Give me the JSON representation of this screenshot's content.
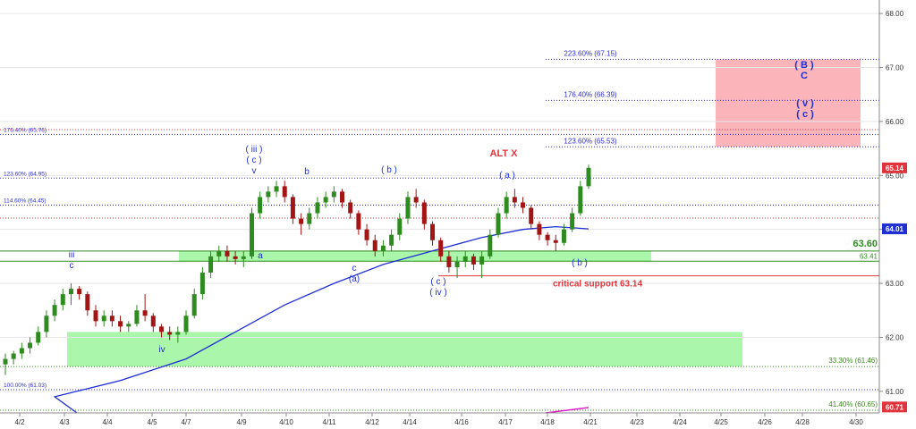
{
  "chart_data": {
    "type": "candlestick",
    "ylim": [
      60.6,
      68.25
    ],
    "y_ticks": [
      "68.00",
      "67.00",
      "66.00",
      "65.00",
      "64.00",
      "63.00",
      "62.00",
      "61.00"
    ],
    "y_tick_values": [
      68,
      67,
      66,
      65,
      64,
      63,
      62,
      61
    ],
    "x_ticks": [
      "4/2",
      "4/3",
      "4/4",
      "4/5",
      "4/7",
      "4/9",
      "4/10",
      "4/11",
      "4/12",
      "4/14",
      "4/16",
      "4/17",
      "4/18",
      "4/21",
      "4/23",
      "4/24",
      "4/25",
      "4/26",
      "4/28",
      "4/30"
    ],
    "price_tags": [
      {
        "text": "65.14",
        "value": 65.14,
        "color": "#e0343c"
      },
      {
        "text": "64.01",
        "value": 64.01,
        "color": "#1f2fd6"
      },
      {
        "text": "60.71",
        "value": 60.71,
        "color": "#e0343c"
      }
    ],
    "fib_levels": [
      {
        "label": "223.60% (67.15)",
        "value": 67.15,
        "color": "#2b2bd6",
        "side": "right"
      },
      {
        "label": "176.40% (66.39)",
        "value": 66.39,
        "color": "#2b2bd6",
        "side": "right"
      },
      {
        "label": "123.60% (65.53)",
        "value": 65.53,
        "color": "#2b2bd6",
        "side": "right"
      },
      {
        "label": "176.40% (65.76)",
        "value": 65.76,
        "color": "#2b2bd6",
        "side": "left"
      },
      {
        "label": "123.60% (64.95)",
        "value": 64.95,
        "color": "#2b2bd6",
        "side": "left"
      },
      {
        "label": "114.60% (64.45)",
        "value": 64.45,
        "color": "#2b2bd6",
        "side": "left"
      },
      {
        "label": "100.00% (61.03)",
        "value": 61.03,
        "color": "#2b2bd6",
        "side": "left"
      },
      {
        "label": "33.30% (61.46)",
        "value": 61.46,
        "color": "#3a8a1f",
        "side": "right"
      },
      {
        "label": "41.40% (60.65)",
        "value": 60.65,
        "color": "#3a8a1f",
        "side": "right"
      }
    ],
    "support_resistance": [
      {
        "label": "63.60",
        "value": 63.6,
        "color": "#2e8b1f"
      },
      {
        "label": "63.41",
        "value": 63.41,
        "color": "#2e8b1f"
      },
      {
        "label": "critical support 63.14",
        "value": 63.14,
        "color": "#e0343c"
      }
    ],
    "zones": [
      {
        "name": "target-zone",
        "y_from": 65.53,
        "y_to": 67.15,
        "color": "#f9a7ae"
      },
      {
        "name": "support-band-upper",
        "y_from": 63.41,
        "y_to": 63.6,
        "color": "#9bf59b"
      },
      {
        "name": "support-band-lower",
        "y_from": 61.46,
        "y_to": 62.1,
        "color": "#9bf59b"
      }
    ],
    "wave_labels": [
      {
        "lines": [
          "iii",
          "c"
        ],
        "color": "#1f2fd6"
      },
      {
        "lines": [
          "iv"
        ],
        "color": "#1f2fd6"
      },
      {
        "lines": [
          "( iii )",
          "( c )",
          "v"
        ],
        "color": "#1f2fd6"
      },
      {
        "lines": [
          "a"
        ],
        "color": "#1f2fd6"
      },
      {
        "lines": [
          "b"
        ],
        "color": "#1f2fd6"
      },
      {
        "lines": [
          "c",
          "(a)"
        ],
        "color": "#1f2fd6"
      },
      {
        "lines": [
          "( b )"
        ],
        "color": "#1f2fd6"
      },
      {
        "lines": [
          "( c )",
          "( iv )"
        ],
        "color": "#1f2fd6"
      },
      {
        "lines": [
          "( a )"
        ],
        "color": "#1f2fd6"
      },
      {
        "lines": [
          "ALT X"
        ],
        "color": "#e0343c"
      },
      {
        "lines": [
          "( b )"
        ],
        "color": "#1f2fd6"
      },
      {
        "lines": [
          "( B )",
          "C"
        ],
        "color": "#1f2fd6"
      },
      {
        "lines": [
          "( v )",
          "( c )"
        ],
        "color": "#1f2fd6"
      }
    ],
    "candles": [
      [
        61.5,
        61.7,
        61.3,
        61.6
      ],
      [
        61.6,
        61.75,
        61.5,
        61.7
      ],
      [
        61.7,
        61.9,
        61.6,
        61.8
      ],
      [
        61.8,
        62.0,
        61.7,
        61.9
      ],
      [
        61.9,
        62.2,
        61.85,
        62.1
      ],
      [
        62.1,
        62.5,
        62.0,
        62.4
      ],
      [
        62.4,
        62.7,
        62.3,
        62.6
      ],
      [
        62.6,
        62.9,
        62.5,
        62.8
      ],
      [
        62.8,
        63.0,
        62.6,
        62.9
      ],
      [
        62.9,
        62.95,
        62.7,
        62.8
      ],
      [
        62.8,
        62.85,
        62.4,
        62.5
      ],
      [
        62.5,
        62.6,
        62.2,
        62.3
      ],
      [
        62.3,
        62.5,
        62.2,
        62.4
      ],
      [
        62.4,
        62.5,
        62.2,
        62.3
      ],
      [
        62.3,
        62.4,
        62.1,
        62.2
      ],
      [
        62.2,
        62.3,
        62.1,
        62.25
      ],
      [
        62.25,
        62.6,
        62.2,
        62.5
      ],
      [
        62.5,
        62.8,
        62.3,
        62.4
      ],
      [
        62.4,
        62.45,
        62.1,
        62.2
      ],
      [
        62.2,
        62.25,
        62.0,
        62.1
      ],
      [
        62.1,
        62.2,
        61.95,
        62.05
      ],
      [
        62.05,
        62.2,
        61.9,
        62.1
      ],
      [
        62.1,
        62.5,
        62.05,
        62.4
      ],
      [
        62.4,
        62.9,
        62.35,
        62.8
      ],
      [
        62.8,
        63.3,
        62.7,
        63.2
      ],
      [
        63.2,
        63.6,
        63.1,
        63.5
      ],
      [
        63.5,
        63.7,
        63.4,
        63.6
      ],
      [
        63.6,
        63.7,
        63.4,
        63.5
      ],
      [
        63.5,
        63.6,
        63.35,
        63.45
      ],
      [
        63.45,
        63.6,
        63.3,
        63.5
      ],
      [
        63.5,
        64.4,
        63.45,
        64.3
      ],
      [
        64.3,
        64.7,
        64.2,
        64.6
      ],
      [
        64.6,
        64.8,
        64.5,
        64.7
      ],
      [
        64.7,
        64.9,
        64.6,
        64.8
      ],
      [
        64.8,
        64.9,
        64.5,
        64.6
      ],
      [
        64.6,
        64.65,
        64.1,
        64.2
      ],
      [
        64.2,
        64.3,
        63.9,
        64.1
      ],
      [
        64.1,
        64.4,
        64.0,
        64.3
      ],
      [
        64.3,
        64.6,
        64.2,
        64.5
      ],
      [
        64.5,
        64.7,
        64.4,
        64.6
      ],
      [
        64.6,
        64.8,
        64.5,
        64.7
      ],
      [
        64.7,
        64.75,
        64.4,
        64.5
      ],
      [
        64.5,
        64.55,
        64.2,
        64.3
      ],
      [
        64.3,
        64.35,
        63.9,
        64.0
      ],
      [
        64.0,
        64.1,
        63.7,
        63.8
      ],
      [
        63.8,
        63.9,
        63.5,
        63.6
      ],
      [
        63.6,
        63.8,
        63.5,
        63.7
      ],
      [
        63.7,
        64.0,
        63.6,
        63.9
      ],
      [
        63.9,
        64.3,
        63.8,
        64.2
      ],
      [
        64.2,
        64.7,
        64.1,
        64.6
      ],
      [
        64.6,
        64.75,
        64.4,
        64.5
      ],
      [
        64.5,
        64.55,
        64.0,
        64.1
      ],
      [
        64.1,
        64.15,
        63.7,
        63.8
      ],
      [
        63.8,
        63.85,
        63.4,
        63.5
      ],
      [
        63.5,
        63.6,
        63.2,
        63.3
      ],
      [
        63.3,
        63.5,
        63.1,
        63.4
      ],
      [
        63.4,
        63.6,
        63.3,
        63.5
      ],
      [
        63.5,
        63.55,
        63.25,
        63.35
      ],
      [
        63.35,
        63.6,
        63.1,
        63.5
      ],
      [
        63.5,
        64.0,
        63.45,
        63.9
      ],
      [
        63.9,
        64.4,
        63.85,
        64.3
      ],
      [
        64.3,
        64.7,
        64.2,
        64.6
      ],
      [
        64.6,
        64.75,
        64.4,
        64.5
      ],
      [
        64.5,
        64.6,
        64.3,
        64.4
      ],
      [
        64.4,
        64.45,
        64.0,
        64.1
      ],
      [
        64.1,
        64.15,
        63.8,
        63.9
      ],
      [
        63.9,
        63.95,
        63.7,
        63.8
      ],
      [
        63.8,
        63.9,
        63.6,
        63.75
      ],
      [
        63.75,
        64.1,
        63.7,
        64.0
      ],
      [
        64.0,
        64.4,
        63.95,
        64.3
      ],
      [
        64.3,
        64.9,
        64.25,
        64.8
      ],
      [
        64.8,
        65.2,
        64.75,
        65.14
      ]
    ],
    "moving_average": [
      [
        0,
        60.6
      ],
      [
        6,
        60.9
      ],
      [
        14,
        61.2
      ],
      [
        22,
        61.6
      ],
      [
        28,
        62.1
      ],
      [
        34,
        62.6
      ],
      [
        40,
        63.0
      ],
      [
        46,
        63.35
      ],
      [
        52,
        63.6
      ],
      [
        58,
        63.85
      ],
      [
        63,
        64.0
      ],
      [
        67,
        64.05
      ],
      [
        71,
        64.01
      ]
    ],
    "magenta_line": [
      [
        57,
        60.6
      ],
      [
        71,
        60.7
      ]
    ]
  }
}
